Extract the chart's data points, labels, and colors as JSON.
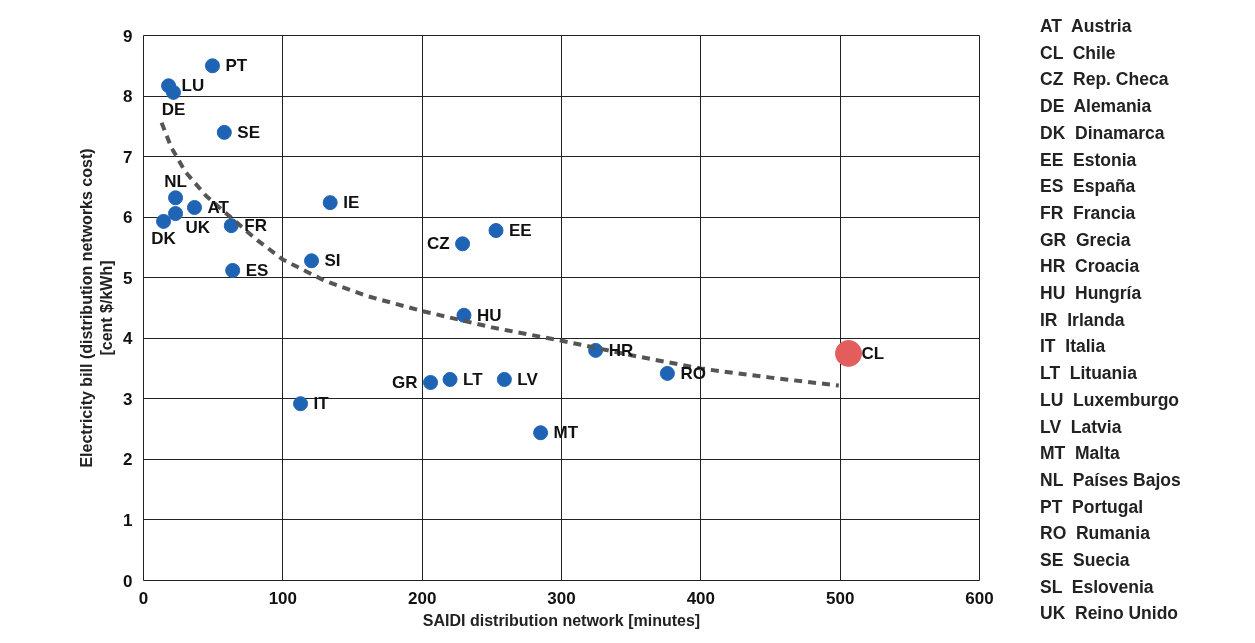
{
  "chart_data": {
    "type": "scatter",
    "xlabel": "SAIDI distribution network [minutes]",
    "ylabel": "Electricity bill (distribution networks cost)\n[cent $/kWh]",
    "xlim": [
      0,
      600
    ],
    "ylim": [
      0,
      9
    ],
    "xticks": [
      0,
      100,
      200,
      300,
      400,
      500,
      600
    ],
    "yticks": [
      0,
      1,
      2,
      3,
      4,
      5,
      6,
      7,
      8,
      9
    ],
    "grid": true,
    "marker": "circle",
    "series": [
      {
        "color": "#1f64b4",
        "x": [
          18,
          49.5,
          21.5,
          58,
          23,
          36.6,
          23,
          14.4,
          63,
          64,
          134,
          120.6,
          229,
          253,
          230,
          324.5,
          376,
          206,
          220,
          259,
          285,
          112.7
        ],
        "values": [
          8.17,
          8.5,
          8.06,
          7.4,
          6.32,
          6.16,
          6.06,
          5.93,
          5.86,
          5.12,
          6.24,
          5.28,
          5.56,
          5.78,
          4.38,
          3.8,
          3.42,
          3.27,
          3.32,
          3.32,
          2.44,
          2.92
        ]
      },
      {
        "color": "#e35d5d",
        "x": [
          506
        ],
        "values": [
          3.75
        ]
      },
      {
        "type": "line",
        "color": "#555555",
        "line_style": "dashed",
        "marker": "none",
        "x": [
          13,
          20,
          30,
          45,
          60,
          80,
          100,
          130,
          160,
          200,
          250,
          300,
          350,
          400,
          450,
          499
        ],
        "values": [
          7.56,
          7.15,
          6.75,
          6.35,
          6.05,
          5.65,
          5.3,
          4.95,
          4.7,
          4.45,
          4.18,
          3.96,
          3.72,
          3.5,
          3.35,
          3.22
        ]
      }
    ],
    "annotations": [
      {
        "text": "LU",
        "x": 18,
        "y": 8.17
      },
      {
        "text": "PT",
        "x": 49.5,
        "y": 8.5
      },
      {
        "text": "DE",
        "x": 21.5,
        "y": 8.06
      },
      {
        "text": "SE",
        "x": 58,
        "y": 7.4
      },
      {
        "text": "NL",
        "x": 23,
        "y": 6.32
      },
      {
        "text": "UK",
        "x": 23,
        "y": 6.06
      },
      {
        "text": "AT",
        "x": 36.6,
        "y": 6.16
      },
      {
        "text": "DK",
        "x": 14.4,
        "y": 5.93
      },
      {
        "text": "FR",
        "x": 63,
        "y": 5.86
      },
      {
        "text": "ES",
        "x": 64,
        "y": 5.12
      },
      {
        "text": "IE",
        "x": 134,
        "y": 6.24
      },
      {
        "text": "SI",
        "x": 120.6,
        "y": 5.28
      },
      {
        "text": "CZ",
        "x": 229,
        "y": 5.56
      },
      {
        "text": "EE",
        "x": 253,
        "y": 5.78
      },
      {
        "text": "HU",
        "x": 230,
        "y": 4.38
      },
      {
        "text": "HR",
        "x": 324.5,
        "y": 3.8
      },
      {
        "text": "RO",
        "x": 376,
        "y": 3.42
      },
      {
        "text": "CL",
        "x": 506,
        "y": 3.75
      },
      {
        "text": "GR",
        "x": 206,
        "y": 3.27
      },
      {
        "text": "LT",
        "x": 220,
        "y": 3.32
      },
      {
        "text": "LV",
        "x": 259,
        "y": 3.32
      },
      {
        "text": "MT",
        "x": 285,
        "y": 2.44
      },
      {
        "text": "IT",
        "x": 112.7,
        "y": 2.92
      },
      "AT  Austria",
      "CL  Chile",
      "CZ  Rep. Checa",
      "DE  Alemania",
      "DK  Dinamarca",
      "EE  Estonia",
      "ES  España",
      "FR  Francia",
      "GR  Grecia",
      "HR  Croacia",
      "HU  Hungría",
      "IR  Irlanda",
      "IT  Italia",
      "LT  Lituania",
      "LU  Luxemburgo",
      "LV  Latvia",
      "MT  Malta",
      "NL  Países Bajos",
      "PT  Portugal",
      "RO  Rumania",
      "SE  Suecia",
      "SL  Eslovenia",
      "UK  Reino Unido"
    ]
  }
}
